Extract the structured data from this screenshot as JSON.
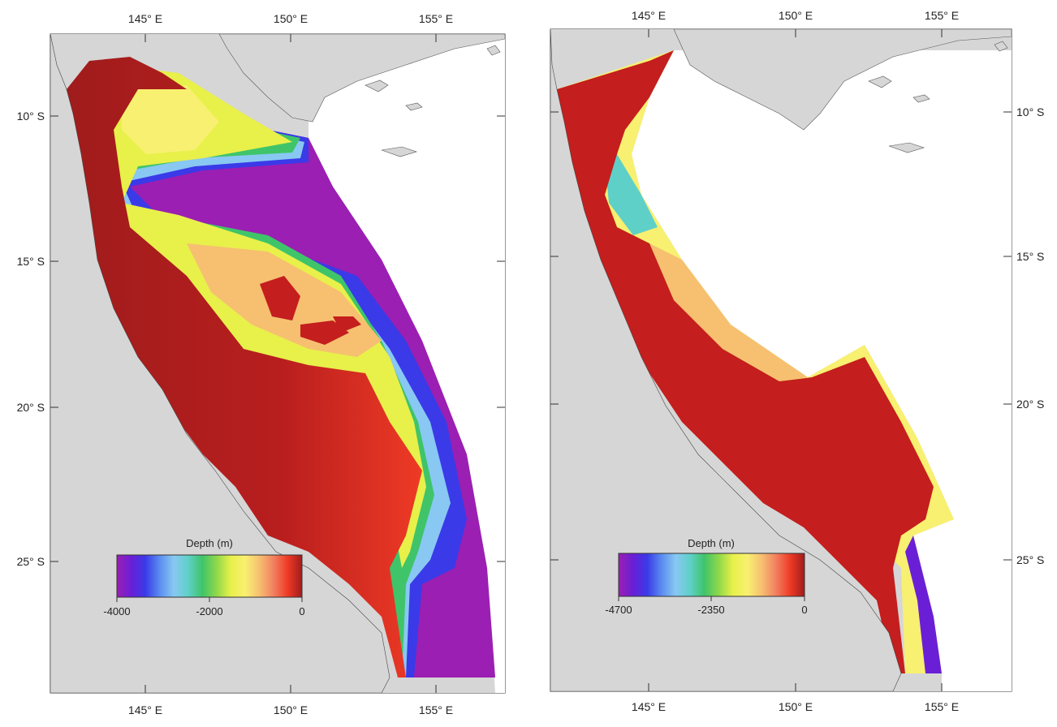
{
  "maps": [
    {
      "id": "left",
      "lon_ticks": [
        "145° E",
        "150° E",
        "155° E"
      ],
      "lat_ticks": [
        "10° S",
        "15° S",
        "20° S",
        "25° S"
      ],
      "colorbar": {
        "title": "Depth (m)",
        "ticks": [
          "-4000",
          "-2000",
          "0"
        ],
        "min": -4000,
        "max": 0
      }
    },
    {
      "id": "right",
      "lon_ticks": [
        "145° E",
        "150° E",
        "155° E"
      ],
      "lat_ticks": [
        "10° S",
        "15° S",
        "20° S",
        "25° S"
      ],
      "colorbar": {
        "title": "Depth (m)",
        "ticks": [
          "-4700",
          "-2350",
          "0"
        ],
        "min": -4700,
        "max": 0
      }
    }
  ],
  "colors": {
    "land": "#d6d6d6",
    "water_background": "#ffffff",
    "colormap": [
      "#9b1fb2",
      "#6a1fd6",
      "#3a3ae8",
      "#5a8cf0",
      "#88c8f2",
      "#5fd0c8",
      "#3fc46a",
      "#8fd84a",
      "#e8f04a",
      "#f8f070",
      "#f6c070",
      "#f28060",
      "#ee3a25",
      "#a01c1c"
    ]
  }
}
